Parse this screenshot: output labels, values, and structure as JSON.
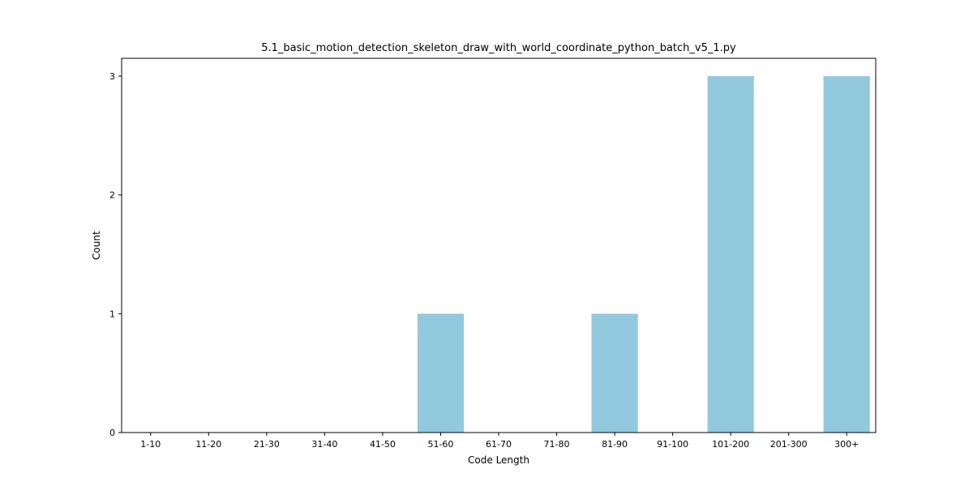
{
  "chart_data": {
    "type": "bar",
    "title": "5.1_basic_motion_detection_skeleton_draw_with_world_coordinate_python_batch_v5_1.py",
    "xlabel": "Code Length",
    "ylabel": "Count",
    "categories": [
      "1-10",
      "11-20",
      "21-30",
      "31-40",
      "41-50",
      "51-60",
      "61-70",
      "71-80",
      "81-90",
      "91-100",
      "101-200",
      "201-300",
      "300+"
    ],
    "values": [
      0,
      0,
      0,
      0,
      0,
      1,
      0,
      0,
      1,
      0,
      3,
      0,
      3
    ],
    "ylim": [
      0,
      3.15
    ],
    "yticks": [
      0,
      1,
      2,
      3
    ],
    "grid": false,
    "bar_color": "#92c9de"
  }
}
